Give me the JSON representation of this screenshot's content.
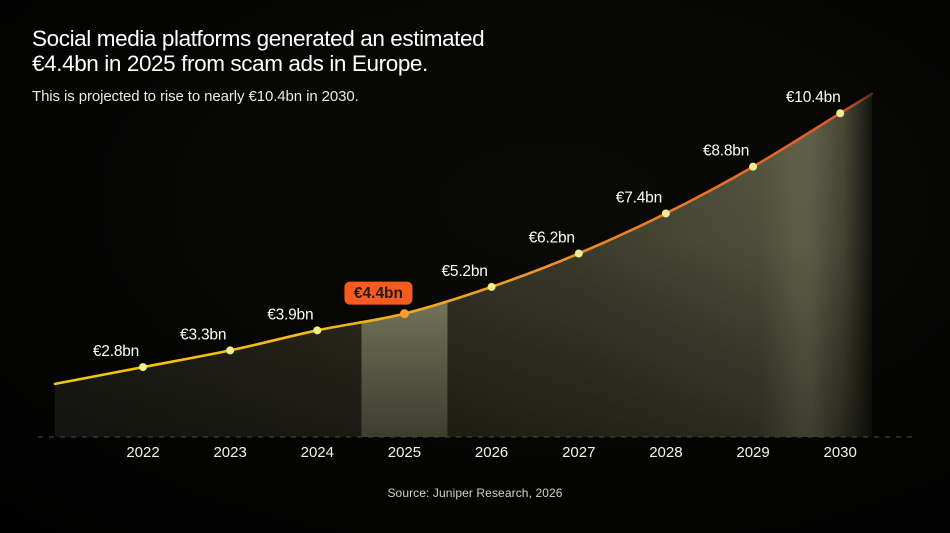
{
  "header": {
    "title_line1": "Social media platforms generated an estimated",
    "title_line2": "€4.4bn in 2025 from scam ads in Europe.",
    "subtitle": "This is projected to rise to nearly €10.4bn in 2030."
  },
  "footer": {
    "source": "Source: Juniper Research, 2026"
  },
  "colors": {
    "line_gradient": [
      "#edc90f",
      "#f4bc17",
      "#f29b26",
      "#ea742a",
      "#e4572c"
    ],
    "point": "#f1ec8d",
    "highlight_point": "#ff9b2f",
    "badge_gradient": [
      "#ffe43c",
      "#fb9222",
      "#f75b1f"
    ],
    "badge_text": "#211f1b",
    "band_top": "#90906f",
    "band_bottom": "#6b6b52",
    "area_dark": "#20201a",
    "area_mid": "#3d3d2d",
    "area_light": "#5a5a44",
    "axis_line": "#4b4840",
    "label_text": "#fbfbf8",
    "year_text": "#f2f2f0"
  },
  "chart_data": {
    "type": "area",
    "title": "Social media platforms generated an estimated €4.4bn in 2025 from scam ads in Europe.",
    "subtitle": "This is projected to rise to nearly €10.4bn in 2030.",
    "source": "Source: Juniper Research, 2026",
    "x": [
      2022,
      2023,
      2024,
      2025,
      2026,
      2027,
      2028,
      2029,
      2030
    ],
    "values": [
      2.8,
      3.3,
      3.9,
      4.4,
      5.2,
      6.2,
      7.4,
      8.8,
      10.4
    ],
    "point_labels": [
      "€2.8bn",
      "€3.3bn",
      "€3.9bn",
      "€4.4bn",
      "€5.2bn",
      "€6.2bn",
      "€7.4bn",
      "€8.8bn",
      "€10.4bn"
    ],
    "unit": "€bn",
    "highlight_index": 3,
    "highlight_label": "€4.4bn",
    "ylim": [
      0,
      11.5
    ],
    "grid": false,
    "legend": false,
    "x_axis_style": "dashed"
  }
}
